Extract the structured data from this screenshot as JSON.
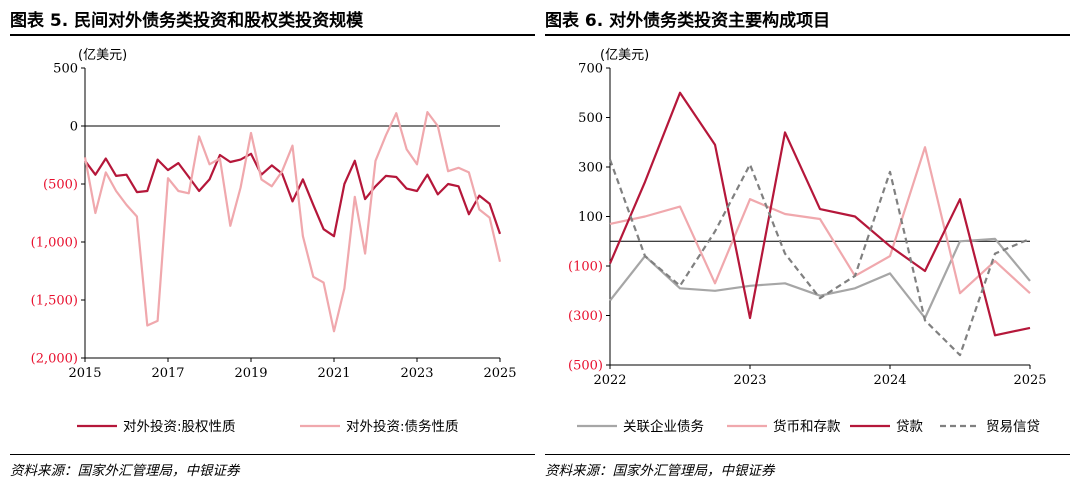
{
  "left": {
    "title": "图表 5. 民间对外债务类投资和股权类投资规模",
    "source": "资料来源：国家外汇管理局，中银证券"
  },
  "right": {
    "title": "图表 6. 对外债务类投资主要构成项目",
    "source": "资料来源：国家外汇管理局，中银证券"
  },
  "colors": {
    "dark_red": "#b5173a",
    "light_pink": "#f0a8ad",
    "gray": "#a6a6a6",
    "dashed_gray": "#808080",
    "negative_label": "#e8102e",
    "zero_line": "#000000"
  },
  "chart_data": [
    {
      "type": "line",
      "unit_label": "(亿美元)",
      "ylim": [
        -2000,
        500
      ],
      "yticks": [
        500,
        0,
        -500,
        -1000,
        -1500,
        -2000
      ],
      "ytick_labels": [
        "500",
        "0",
        "(500)",
        "(1,000)",
        "(1,500)",
        "(2,000)"
      ],
      "xlim": [
        2015,
        2025
      ],
      "xticks": [
        2015,
        2017,
        2019,
        2021,
        2023,
        2025
      ],
      "xtick_labels": [
        "2015",
        "2017",
        "2019",
        "2021",
        "2023",
        "2025"
      ],
      "legend_position": "bottom",
      "series": [
        {
          "name": "对外投资:股权性质",
          "color_key": "dark_red",
          "dash": false,
          "points": [
            [
              2015.0,
              -300
            ],
            [
              2015.25,
              -420
            ],
            [
              2015.5,
              -280
            ],
            [
              2015.75,
              -430
            ],
            [
              2016.0,
              -420
            ],
            [
              2016.25,
              -570
            ],
            [
              2016.5,
              -560
            ],
            [
              2016.75,
              -290
            ],
            [
              2017.0,
              -380
            ],
            [
              2017.25,
              -320
            ],
            [
              2017.5,
              -440
            ],
            [
              2017.75,
              -560
            ],
            [
              2018.0,
              -460
            ],
            [
              2018.25,
              -250
            ],
            [
              2018.5,
              -310
            ],
            [
              2018.75,
              -290
            ],
            [
              2019.0,
              -240
            ],
            [
              2019.25,
              -420
            ],
            [
              2019.5,
              -340
            ],
            [
              2019.75,
              -410
            ],
            [
              2020.0,
              -650
            ],
            [
              2020.25,
              -460
            ],
            [
              2020.5,
              -680
            ],
            [
              2020.75,
              -890
            ],
            [
              2021.0,
              -950
            ],
            [
              2021.25,
              -500
            ],
            [
              2021.5,
              -300
            ],
            [
              2021.75,
              -630
            ],
            [
              2022.0,
              -520
            ],
            [
              2022.25,
              -430
            ],
            [
              2022.5,
              -440
            ],
            [
              2022.75,
              -540
            ],
            [
              2023.0,
              -560
            ],
            [
              2023.25,
              -420
            ],
            [
              2023.5,
              -590
            ],
            [
              2023.75,
              -500
            ],
            [
              2024.0,
              -520
            ],
            [
              2024.25,
              -760
            ],
            [
              2024.5,
              -600
            ],
            [
              2024.75,
              -670
            ],
            [
              2025.0,
              -930
            ]
          ]
        },
        {
          "name": "对外投资:债务性质",
          "color_key": "light_pink",
          "dash": false,
          "points": [
            [
              2015.0,
              -270
            ],
            [
              2015.25,
              -750
            ],
            [
              2015.5,
              -400
            ],
            [
              2015.75,
              -560
            ],
            [
              2016.0,
              -680
            ],
            [
              2016.25,
              -780
            ],
            [
              2016.5,
              -1720
            ],
            [
              2016.75,
              -1680
            ],
            [
              2017.0,
              -450
            ],
            [
              2017.25,
              -560
            ],
            [
              2017.5,
              -580
            ],
            [
              2017.75,
              -90
            ],
            [
              2018.0,
              -330
            ],
            [
              2018.25,
              -280
            ],
            [
              2018.5,
              -860
            ],
            [
              2018.75,
              -530
            ],
            [
              2019.0,
              -60
            ],
            [
              2019.25,
              -460
            ],
            [
              2019.5,
              -520
            ],
            [
              2019.75,
              -390
            ],
            [
              2020.0,
              -170
            ],
            [
              2020.25,
              -950
            ],
            [
              2020.5,
              -1300
            ],
            [
              2020.75,
              -1350
            ],
            [
              2021.0,
              -1770
            ],
            [
              2021.25,
              -1400
            ],
            [
              2021.5,
              -610
            ],
            [
              2021.75,
              -1100
            ],
            [
              2022.0,
              -300
            ],
            [
              2022.25,
              -80
            ],
            [
              2022.5,
              110
            ],
            [
              2022.75,
              -200
            ],
            [
              2023.0,
              -330
            ],
            [
              2023.25,
              120
            ],
            [
              2023.5,
              0
            ],
            [
              2023.75,
              -390
            ],
            [
              2024.0,
              -360
            ],
            [
              2024.25,
              -400
            ],
            [
              2024.5,
              -720
            ],
            [
              2024.75,
              -790
            ],
            [
              2025.0,
              -1170
            ]
          ]
        }
      ]
    },
    {
      "type": "line",
      "unit_label": "(亿美元)",
      "ylim": [
        -500,
        700
      ],
      "yticks": [
        700,
        500,
        300,
        100,
        -100,
        -300,
        -500
      ],
      "ytick_labels": [
        "700",
        "500",
        "300",
        "100",
        "(100)",
        "(300)",
        "(500)"
      ],
      "xlim": [
        2022,
        2025
      ],
      "xticks": [
        2022,
        2023,
        2024,
        2025
      ],
      "xtick_labels": [
        "2022",
        "2023",
        "2024",
        "2025"
      ],
      "legend_position": "bottom",
      "series": [
        {
          "name": "关联企业债务",
          "color_key": "gray",
          "dash": false,
          "points": [
            [
              2022.0,
              -240
            ],
            [
              2022.25,
              -60
            ],
            [
              2022.5,
              -190
            ],
            [
              2022.75,
              -200
            ],
            [
              2023.0,
              -180
            ],
            [
              2023.25,
              -170
            ],
            [
              2023.5,
              -220
            ],
            [
              2023.75,
              -190
            ],
            [
              2024.0,
              -130
            ],
            [
              2024.25,
              -310
            ],
            [
              2024.5,
              0
            ],
            [
              2024.75,
              10
            ],
            [
              2025.0,
              -160
            ]
          ]
        },
        {
          "name": "货币和存款",
          "color_key": "light_pink",
          "dash": false,
          "points": [
            [
              2022.0,
              70
            ],
            [
              2022.25,
              100
            ],
            [
              2022.5,
              140
            ],
            [
              2022.75,
              -170
            ],
            [
              2023.0,
              170
            ],
            [
              2023.25,
              110
            ],
            [
              2023.5,
              90
            ],
            [
              2023.75,
              -140
            ],
            [
              2024.0,
              -60
            ],
            [
              2024.25,
              380
            ],
            [
              2024.5,
              -210
            ],
            [
              2024.75,
              -80
            ],
            [
              2025.0,
              -210
            ]
          ]
        },
        {
          "name": "贷款",
          "color_key": "dark_red",
          "dash": false,
          "points": [
            [
              2022.0,
              -90
            ],
            [
              2022.25,
              240
            ],
            [
              2022.5,
              600
            ],
            [
              2022.75,
              390
            ],
            [
              2023.0,
              -310
            ],
            [
              2023.25,
              440
            ],
            [
              2023.5,
              130
            ],
            [
              2023.75,
              100
            ],
            [
              2024.0,
              -20
            ],
            [
              2024.25,
              -120
            ],
            [
              2024.5,
              170
            ],
            [
              2024.75,
              -380
            ],
            [
              2025.0,
              -350
            ]
          ]
        },
        {
          "name": "贸易信贷",
          "color_key": "dashed_gray",
          "dash": true,
          "points": [
            [
              2022.0,
              330
            ],
            [
              2022.25,
              -60
            ],
            [
              2022.5,
              -180
            ],
            [
              2022.75,
              40
            ],
            [
              2023.0,
              310
            ],
            [
              2023.25,
              -50
            ],
            [
              2023.5,
              -230
            ],
            [
              2023.75,
              -140
            ],
            [
              2024.0,
              280
            ],
            [
              2024.25,
              -320
            ],
            [
              2024.5,
              -460
            ],
            [
              2024.75,
              -50
            ],
            [
              2025.0,
              10
            ]
          ]
        }
      ]
    }
  ]
}
